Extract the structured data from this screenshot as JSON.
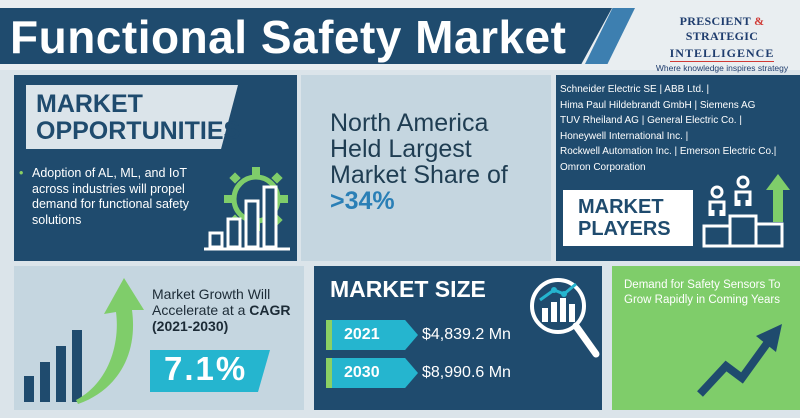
{
  "header": {
    "title": "Functional Safety Market",
    "logo_line1_left": "PRESCIENT",
    "logo_line1_amp": "&",
    "logo_line1_right": "STRATEGIC",
    "logo_line2": "INTELLIGENCE",
    "logo_tagline": "Where knowledge inspires strategy"
  },
  "opportunities": {
    "title_line1": "MARKET",
    "title_line2": "OPPORTUNITIES",
    "bullet": "Adoption of AL, ML, and IoT across industries will propel demand for functional safety solutions",
    "icon": "gear-bar-chart-icon"
  },
  "north_america": {
    "text_before": "North America Held Largest Market Share of ",
    "share": ">34%"
  },
  "players": {
    "lines": [
      "Schneider Electric SE | ABB Ltd. |",
      "Hima Paul Hildebrandt GmbH | Siemens AG",
      "TUV Rheiland AG | General Electric Co. |",
      "Honeywell International Inc. |",
      "Rockwell Automation Inc. | Emerson Electric Co.|",
      "Omron Corporation"
    ],
    "title_line1": "MARKET",
    "title_line2": "PLAYERS",
    "icon": "podium-people-icon"
  },
  "growth": {
    "text": "Market Growth Will Accelerate at a",
    "cagr_label": "CAGR (2021-2030)",
    "value": "7.1%",
    "icon": "growth-arrow-bars-icon"
  },
  "market_size": {
    "title": "MARKET SIZE",
    "rows": [
      {
        "year": "2021",
        "value": "$4,839.2 Mn"
      },
      {
        "year": "2030",
        "value": "$8,990.6 Mn"
      }
    ],
    "icon": "magnifier-chart-icon"
  },
  "sensors": {
    "text": "Demand for Safety Sensors To Grow Rapidly in Coming Years",
    "icon": "rising-arrow-icon"
  },
  "colors": {
    "navy": "#1f4b6e",
    "cyan": "#25b5cf",
    "green": "#7fcd6a",
    "light_blue": "#c5d6e0"
  }
}
